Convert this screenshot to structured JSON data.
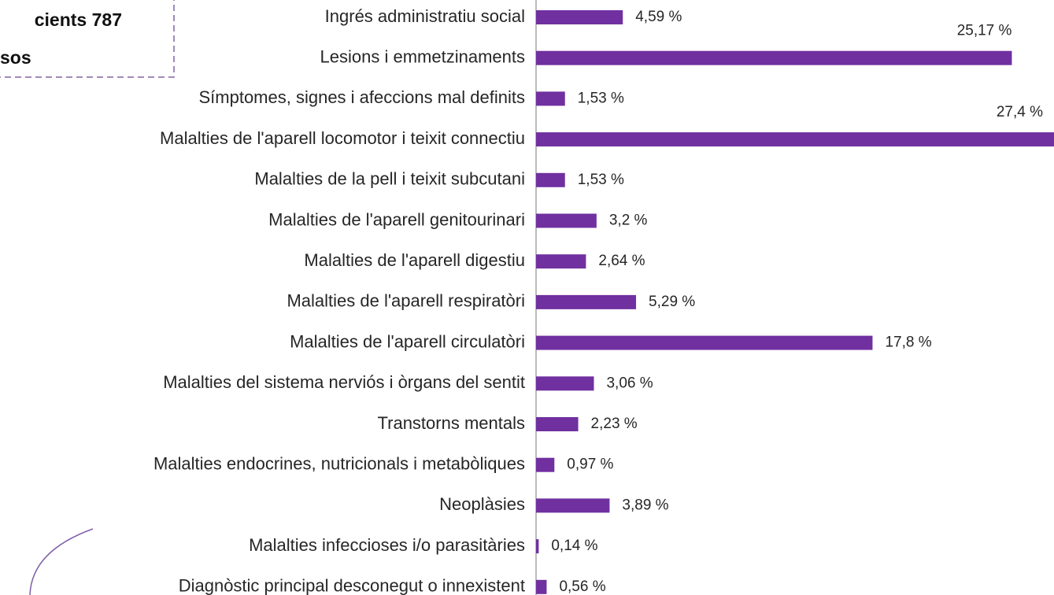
{
  "chart_data": {
    "type": "barh",
    "annotations": [
      "cients 787",
      "sos"
    ],
    "categories": [
      "Ingrés administratiu social",
      "Lesions i emmetzinaments",
      "Símptomes, signes i afeccions mal definits",
      "Malalties de l'aparell locomotor i teixit connectiu",
      "Malalties de la pell i teixit subcutani",
      "Malalties de l'aparell genitourinari",
      "Malalties de l'aparell digestiu",
      "Malalties de l'aparell respiratòri",
      "Malalties de l'aparell circulatòri",
      "Malalties del sistema nerviós i òrgans del sentit",
      "Transtorns mentals",
      "Malalties endocrines, nutricionals i metabòliques",
      "Neoplàsies",
      "Malalties infeccioses i/o parasitàries",
      "Diagnòstic principal desconegut o innexistent"
    ],
    "values": [
      4.59,
      25.17,
      1.53,
      27.4,
      1.53,
      3.2,
      2.64,
      5.29,
      17.8,
      3.06,
      2.23,
      0.97,
      3.89,
      0.14,
      0.56
    ],
    "value_labels": [
      "4,59 %",
      "25,17 %",
      "1,53 %",
      "27,4 %",
      "1,53 %",
      "3,2 %",
      "2,64 %",
      "5,29 %",
      "17,8 %",
      "3,06 %",
      "2,23 %",
      "0,97 %",
      "3,89 %",
      "0,14 %",
      "0,56 %"
    ],
    "color": "#7030a0",
    "xlim": [
      0,
      27.4
    ]
  }
}
